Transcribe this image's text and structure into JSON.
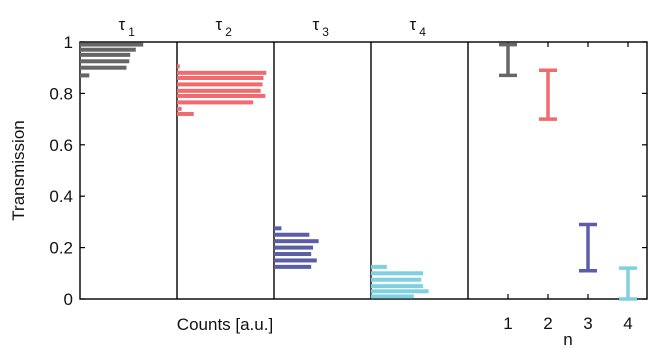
{
  "chart_data": {
    "type": "bar",
    "ylabel": "Transmission",
    "xlabel_left": "Counts [a.u.]",
    "xlabel_right": "n",
    "ylim": [
      0,
      1
    ],
    "yticks": [
      "0",
      "0.2",
      "0.4",
      "0.6",
      "0.8",
      "1"
    ],
    "grid": false,
    "histograms": [
      {
        "label_base": "τ",
        "label_sub": "1",
        "color": "#666666",
        "bins": [
          {
            "y": 0.99,
            "count": 0.68
          },
          {
            "y": 0.97,
            "count": 0.6
          },
          {
            "y": 0.95,
            "count": 0.54
          },
          {
            "y": 0.925,
            "count": 0.53
          },
          {
            "y": 0.9,
            "count": 0.5
          },
          {
            "y": 0.87,
            "count": 0.1
          }
        ]
      },
      {
        "label_base": "τ",
        "label_sub": "2",
        "color": "#ef6b6e",
        "bins": [
          {
            "y": 0.905,
            "count": 0.03
          },
          {
            "y": 0.88,
            "count": 0.96
          },
          {
            "y": 0.86,
            "count": 0.93
          },
          {
            "y": 0.835,
            "count": 0.92
          },
          {
            "y": 0.81,
            "count": 0.9
          },
          {
            "y": 0.79,
            "count": 0.95
          },
          {
            "y": 0.765,
            "count": 0.82
          },
          {
            "y": 0.74,
            "count": 0.05
          },
          {
            "y": 0.72,
            "count": 0.18
          }
        ]
      },
      {
        "label_base": "τ",
        "label_sub": "3",
        "color": "#5b5ea6",
        "bins": [
          {
            "y": 0.275,
            "count": 0.08
          },
          {
            "y": 0.25,
            "count": 0.38
          },
          {
            "y": 0.225,
            "count": 0.48
          },
          {
            "y": 0.2,
            "count": 0.42
          },
          {
            "y": 0.175,
            "count": 0.4
          },
          {
            "y": 0.15,
            "count": 0.46
          },
          {
            "y": 0.125,
            "count": 0.4
          }
        ]
      },
      {
        "label_base": "τ",
        "label_sub": "4",
        "color": "#7fd0e0",
        "bins": [
          {
            "y": 0.125,
            "count": 0.17
          },
          {
            "y": 0.1,
            "count": 0.56
          },
          {
            "y": 0.075,
            "count": 0.54
          },
          {
            "y": 0.05,
            "count": 0.56
          },
          {
            "y": 0.03,
            "count": 0.62
          },
          {
            "y": 0.01,
            "count": 0.46
          }
        ]
      }
    ],
    "ranges": {
      "x_ticks": [
        "1",
        "2",
        "3",
        "4"
      ],
      "items": [
        {
          "n": 1,
          "low": 0.87,
          "high": 0.99,
          "color": "#666666"
        },
        {
          "n": 2,
          "low": 0.7,
          "high": 0.89,
          "color": "#ef6b6e"
        },
        {
          "n": 3,
          "low": 0.11,
          "high": 0.29,
          "color": "#5b5ea6"
        },
        {
          "n": 4,
          "low": 0.0,
          "high": 0.12,
          "color": "#7fd0e0"
        }
      ]
    }
  }
}
